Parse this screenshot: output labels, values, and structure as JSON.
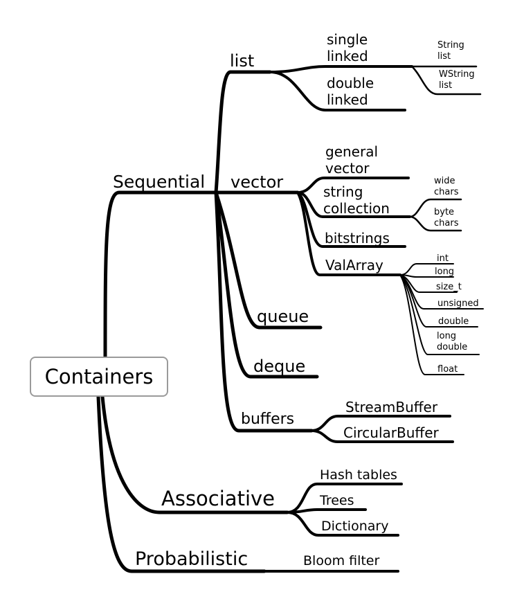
{
  "root": "Containers",
  "categories": {
    "sequential": "Sequential",
    "associative": "Associative",
    "probabilistic": "Probabilistic"
  },
  "sequential": {
    "list": {
      "label": "list",
      "single_linked": "single\nlinked",
      "double_linked": "double\nlinked",
      "string_list": "String\nlist",
      "wstring_list": "WString\nlist"
    },
    "vector": {
      "label": "vector",
      "general_vector": "general\nvector",
      "string_collection": "string\ncollection",
      "wide_chars": "wide\nchars",
      "byte_chars": "byte\nchars",
      "bitstrings": "bitstrings",
      "valarray": "ValArray",
      "valarray_types": [
        "int",
        "long",
        "size_t",
        "unsigned",
        "double",
        "long\ndouble",
        "float"
      ]
    },
    "queue": "queue",
    "deque": "deque",
    "buffers": {
      "label": "buffers",
      "stream_buffer": "StreamBuffer",
      "circular_buffer": "CircularBuffer"
    }
  },
  "associative": {
    "hash_tables": "Hash tables",
    "trees": "Trees",
    "dictionary": "Dictionary"
  },
  "probabilistic": {
    "bloom_filter": "Bloom filter"
  }
}
